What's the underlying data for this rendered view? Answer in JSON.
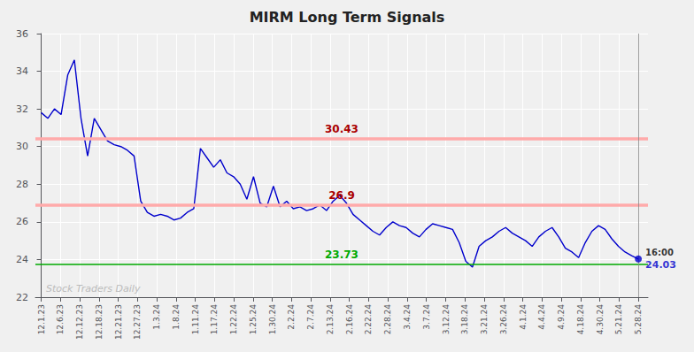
{
  "chart_data": {
    "type": "line",
    "title": "MIRM Long Term Signals",
    "x": [
      0,
      0.3444,
      0.6889,
      1.0333,
      1.3778,
      1.7222,
      2.0667,
      2.4111,
      2.7556,
      3.1,
      3.4444,
      3.7889,
      4.1333,
      4.4778,
      4.8222,
      5.1667,
      5.5111,
      5.8556,
      6.2,
      6.5444,
      6.8889,
      7.2333,
      7.5778,
      7.9222,
      8.2667,
      8.6111,
      8.9556,
      9.3,
      9.6444,
      9.9889,
      10.3333,
      10.6778,
      11.0222,
      11.3667,
      11.7111,
      12.0556,
      12.4,
      12.7444,
      13.0889,
      13.4333,
      13.7778,
      14.1222,
      14.4667,
      14.8111,
      15.1556,
      15.5,
      15.8444,
      16.1889,
      16.5333,
      16.8778,
      17.2222,
      17.5667,
      17.9111,
      18.2556,
      18.6,
      18.9444,
      19.2889,
      19.6333,
      19.9778,
      20.3222,
      20.6667,
      21.0111,
      21.3556,
      21.7,
      22.0444,
      22.3889,
      22.7333,
      23.0778,
      23.4222,
      23.7667,
      24.1111,
      24.4556,
      24.8,
      25.1444,
      25.4889,
      25.8333,
      26.1778,
      26.5222,
      26.8667,
      27.2111,
      27.5556,
      27.9,
      28.2444,
      28.5889,
      28.9333,
      29.2778,
      29.6222,
      29.9667,
      30.3111,
      30.6556,
      31
    ],
    "values": [
      31.8,
      31.5,
      32.0,
      31.7,
      33.8,
      34.6,
      31.5,
      29.5,
      31.5,
      30.9,
      30.3,
      30.1,
      30.0,
      29.8,
      29.5,
      27.1,
      26.5,
      26.3,
      26.4,
      26.3,
      26.1,
      26.2,
      26.5,
      26.7,
      29.9,
      29.4,
      28.9,
      29.3,
      28.6,
      28.4,
      28.0,
      27.2,
      28.4,
      27.0,
      26.8,
      27.9,
      26.8,
      27.1,
      26.7,
      26.8,
      26.6,
      26.7,
      26.9,
      26.6,
      27.1,
      27.4,
      27.0,
      26.4,
      26.1,
      25.8,
      25.5,
      25.3,
      25.7,
      26.0,
      25.8,
      25.7,
      25.4,
      25.2,
      25.6,
      25.9,
      25.8,
      25.7,
      25.6,
      24.9,
      23.9,
      23.6,
      24.7,
      25.0,
      25.2,
      25.5,
      25.7,
      25.4,
      25.2,
      25.0,
      24.7,
      25.2,
      25.5,
      25.7,
      25.2,
      24.6,
      24.4,
      24.1,
      24.9,
      25.5,
      25.8,
      25.6,
      25.1,
      24.7,
      24.4,
      24.2,
      24.03
    ],
    "color": "#0000cc",
    "xlim": [
      -0.3,
      31.5
    ],
    "xticks": [
      {
        "value": 0,
        "label": "12.1.23"
      },
      {
        "value": 1,
        "label": "12.6.23"
      },
      {
        "value": 2,
        "label": "12.12.23"
      },
      {
        "value": 3,
        "label": "12.18.23"
      },
      {
        "value": 4,
        "label": "12.21.23"
      },
      {
        "value": 5,
        "label": "12.27.23"
      },
      {
        "value": 6,
        "label": "1.3.24"
      },
      {
        "value": 7,
        "label": "1.8.24"
      },
      {
        "value": 8,
        "label": "1.11.24"
      },
      {
        "value": 9,
        "label": "1.17.24"
      },
      {
        "value": 10,
        "label": "1.22.24"
      },
      {
        "value": 11,
        "label": "1.25.24"
      },
      {
        "value": 12,
        "label": "1.30.24"
      },
      {
        "value": 13,
        "label": "2.2.24"
      },
      {
        "value": 14,
        "label": "2.7.24"
      },
      {
        "value": 15,
        "label": "2.13.24"
      },
      {
        "value": 16,
        "label": "2.16.24"
      },
      {
        "value": 17,
        "label": "2.22.24"
      },
      {
        "value": 18,
        "label": "2.28.24"
      },
      {
        "value": 19,
        "label": "3.4.24"
      },
      {
        "value": 20,
        "label": "3.7.24"
      },
      {
        "value": 21,
        "label": "3.12.24"
      },
      {
        "value": 22,
        "label": "3.18.24"
      },
      {
        "value": 23,
        "label": "3.21.24"
      },
      {
        "value": 24,
        "label": "3.26.24"
      },
      {
        "value": 25,
        "label": "4.1.24"
      },
      {
        "value": 26,
        "label": "4.4.24"
      },
      {
        "value": 27,
        "label": "4.9.24"
      },
      {
        "value": 28,
        "label": "4.18.24"
      },
      {
        "value": 29,
        "label": "4.30.24"
      },
      {
        "value": 30,
        "label": "5.21.24"
      },
      {
        "value": 31,
        "label": "5.28.24"
      }
    ],
    "ylim": [
      22,
      36
    ],
    "yticks": [
      22,
      24,
      26,
      28,
      30,
      32,
      34,
      36
    ],
    "grid": true,
    "grid_color": "#ffffff",
    "background_color": "#f0f0f0",
    "hlines": [
      {
        "y": 30.43,
        "color": "#ffaaaa",
        "label": "30.43",
        "label_color": "#aa0000"
      },
      {
        "y": 26.9,
        "color": "#ffaaaa",
        "label": "26.9",
        "label_color": "#aa0000"
      },
      {
        "y": 23.73,
        "color": "#00aa00",
        "label": "23.73",
        "label_color": "#00aa00"
      }
    ],
    "end_marker": {
      "color": "#0000cc",
      "line_color": "#888888",
      "time_label": "16:00",
      "price_label": "24.03"
    },
    "watermark": "Stock Traders Daily"
  }
}
